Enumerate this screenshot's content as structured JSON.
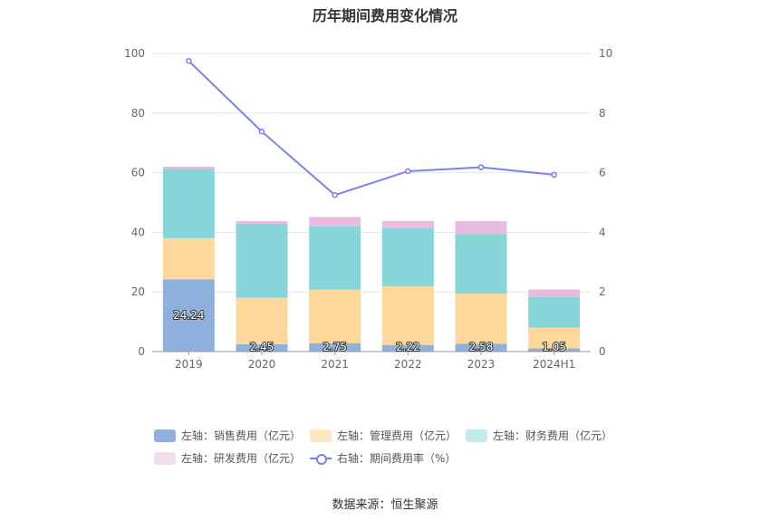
{
  "title": "历年期间费用变化情况",
  "source": "数据来源：恒生聚源",
  "colors": {
    "sales": "#8eb0dc",
    "admin": "#fdd89a",
    "finance": "#85d5d9",
    "rd": "#e8bcde",
    "rate": "#7b7ff0"
  },
  "legend": [
    {
      "label": "左轴：销售费用（亿元）",
      "color": "#8eb0dc",
      "kind": "bar"
    },
    {
      "label": "左轴：管理费用（亿元）",
      "color": "#fde6c2",
      "kind": "bar"
    },
    {
      "label": "左轴：财务费用（亿元）",
      "color": "#c4ebec",
      "kind": "bar"
    },
    {
      "label": "左轴：研发费用（亿元）",
      "color": "#f2dcee",
      "kind": "bar"
    },
    {
      "label": "右轴：期间费用率（%）",
      "color": "#7b7ff0",
      "kind": "line"
    }
  ],
  "chart_data": {
    "type": "bar",
    "stacked": true,
    "categories": [
      "2019",
      "2020",
      "2021",
      "2022",
      "2023",
      "2024H1"
    ],
    "ylim": [
      0,
      100
    ],
    "y_ticks": [
      0,
      20,
      40,
      60,
      80,
      100
    ],
    "y2lim": [
      0,
      10
    ],
    "y2_ticks": [
      0,
      2,
      4,
      6,
      8,
      10
    ],
    "grid": true,
    "legend_position": "bottom",
    "series": [
      {
        "name": "左轴：销售费用（亿元）",
        "axis": "left",
        "type": "bar",
        "values": [
          24.24,
          2.45,
          2.75,
          2.22,
          2.58,
          1.05
        ],
        "labels": [
          "24.24",
          "2.45",
          "2.75",
          "2.22",
          "2.58",
          "1.05"
        ]
      },
      {
        "name": "左轴：管理费用（亿元）",
        "axis": "left",
        "type": "bar",
        "values": [
          13.8,
          15.6,
          18.0,
          19.7,
          16.9,
          7.0
        ]
      },
      {
        "name": "左轴：财务费用（亿元）",
        "axis": "left",
        "type": "bar",
        "values": [
          23.2,
          24.8,
          21.2,
          19.4,
          19.9,
          10.3
        ]
      },
      {
        "name": "左轴：研发费用（亿元）",
        "axis": "left",
        "type": "bar",
        "values": [
          0.8,
          0.9,
          3.2,
          2.5,
          4.4,
          2.5
        ]
      },
      {
        "name": "右轴：期间费用率（%）",
        "axis": "right",
        "type": "line",
        "values": [
          9.75,
          7.38,
          5.25,
          6.05,
          6.18,
          5.93
        ]
      }
    ]
  }
}
